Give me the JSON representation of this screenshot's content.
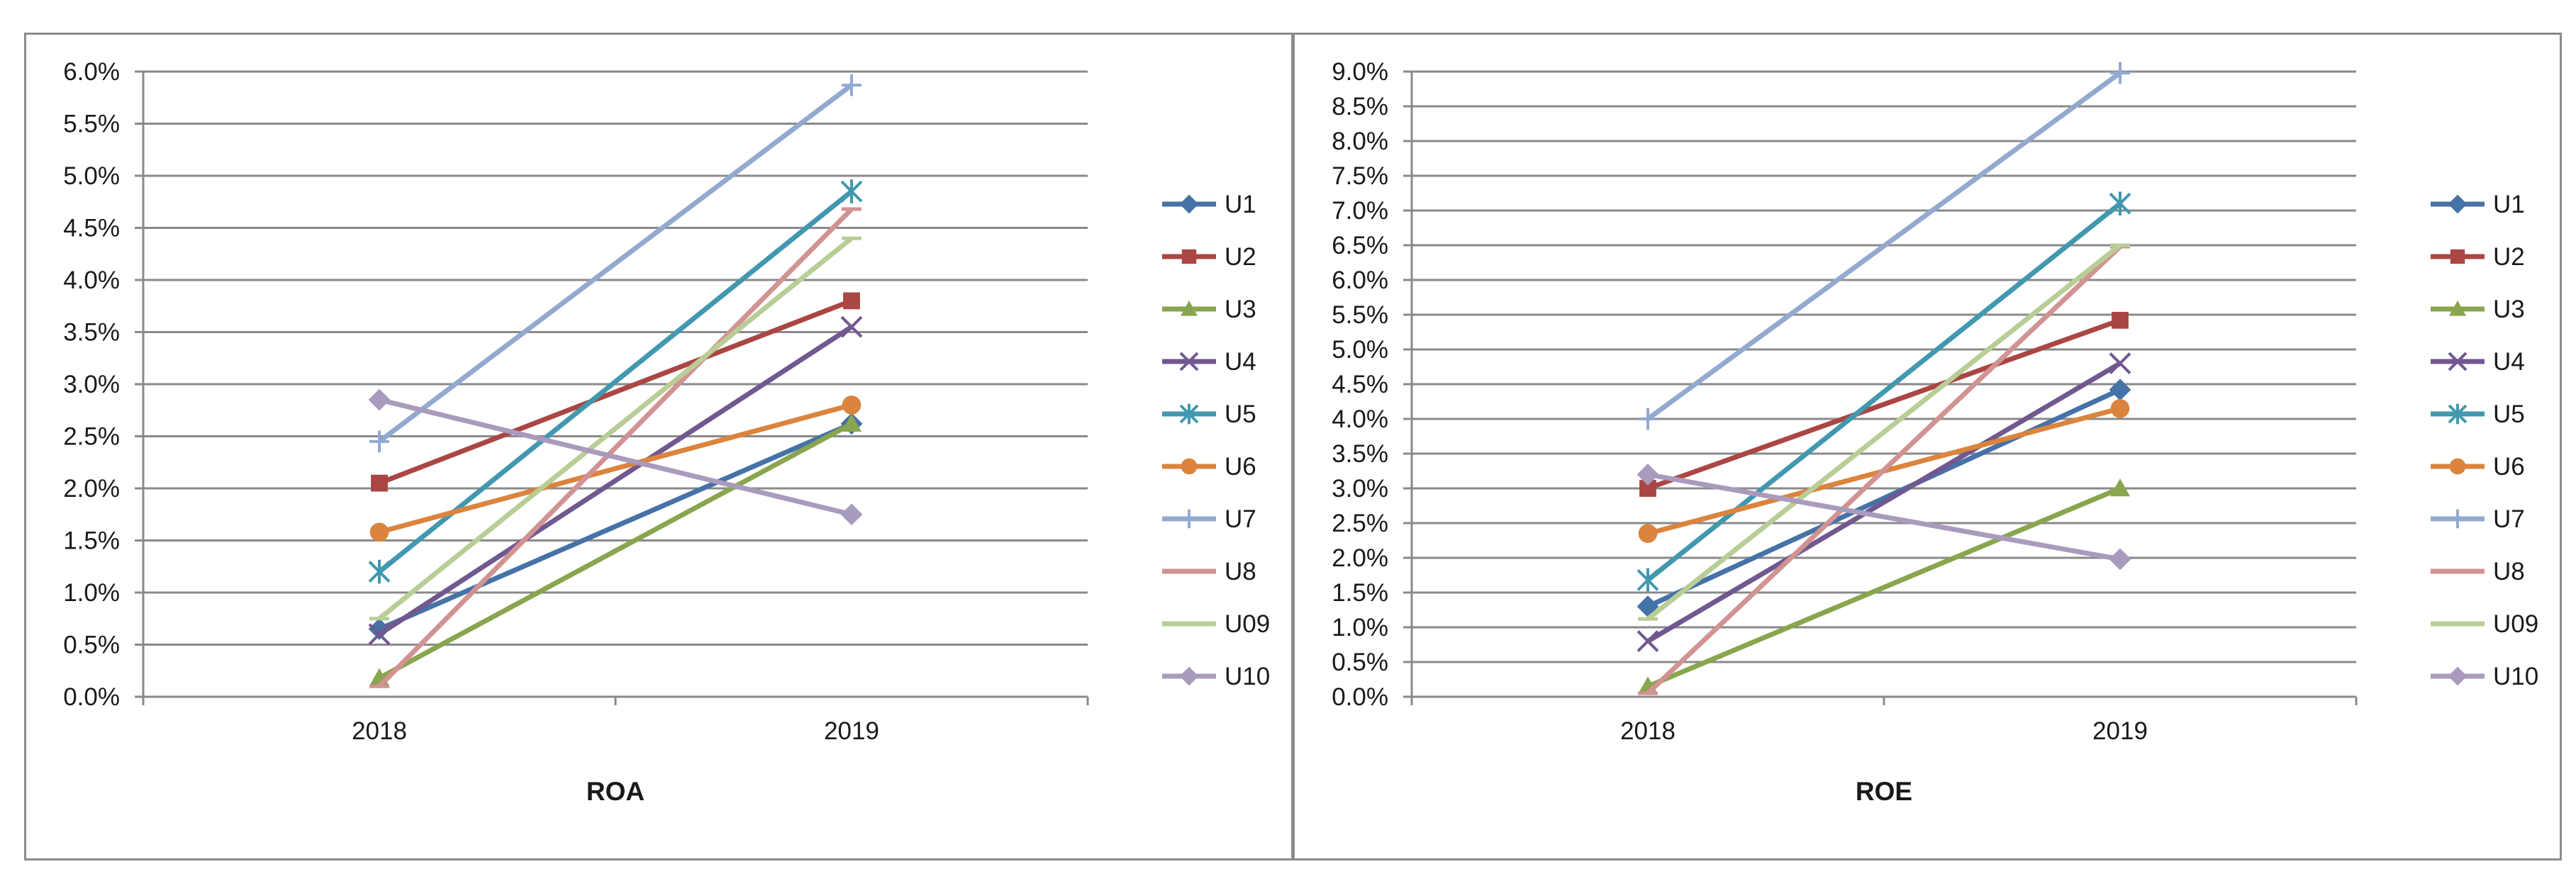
{
  "chart_data": [
    {
      "type": "line",
      "xlabel": "ROA",
      "ylabel": "",
      "categories": [
        "2018",
        "2019"
      ],
      "ylim": [
        0,
        6.0
      ],
      "ytick_step": 0.5,
      "ytick_labels": [
        "0.0%",
        "0.5%",
        "1.0%",
        "1.5%",
        "2.0%",
        "2.5%",
        "3.0%",
        "3.5%",
        "4.0%",
        "4.5%",
        "5.0%",
        "5.5%",
        "6.0%"
      ],
      "grid": true,
      "legend_position": "right",
      "series": [
        {
          "name": "U1",
          "values": [
            0.65,
            2.62
          ],
          "color": "#4572a7",
          "marker": "diamond"
        },
        {
          "name": "U2",
          "values": [
            2.05,
            3.8
          ],
          "color": "#aa4643",
          "marker": "square"
        },
        {
          "name": "U3",
          "values": [
            0.18,
            2.62
          ],
          "color": "#89a54e",
          "marker": "triangle"
        },
        {
          "name": "U4",
          "values": [
            0.6,
            3.55
          ],
          "color": "#71588f",
          "marker": "x"
        },
        {
          "name": "U5",
          "values": [
            1.2,
            4.85
          ],
          "color": "#4198af",
          "marker": "star"
        },
        {
          "name": "U6",
          "values": [
            1.58,
            2.8
          ],
          "color": "#db843d",
          "marker": "circle"
        },
        {
          "name": "U7",
          "values": [
            2.45,
            5.87
          ],
          "color": "#93a9cf",
          "marker": "plus"
        },
        {
          "name": "U8",
          "values": [
            0.1,
            4.68
          ],
          "color": "#d19392",
          "marker": "dash"
        },
        {
          "name": "U09",
          "values": [
            0.75,
            4.4
          ],
          "color": "#b9cd96",
          "marker": "dash"
        },
        {
          "name": "U10",
          "values": [
            2.85,
            1.75
          ],
          "color": "#a99bbd",
          "marker": "diamond"
        }
      ]
    },
    {
      "type": "line",
      "xlabel": "ROE",
      "ylabel": "",
      "categories": [
        "2018",
        "2019"
      ],
      "ylim": [
        0,
        9.0
      ],
      "ytick_step": 0.5,
      "ytick_labels": [
        "0.0%",
        "0.5%",
        "1.0%",
        "1.5%",
        "2.0%",
        "2.5%",
        "3.0%",
        "3.5%",
        "4.0%",
        "4.5%",
        "5.0%",
        "5.5%",
        "6.0%",
        "6.5%",
        "7.0%",
        "7.5%",
        "8.0%",
        "8.5%",
        "9.0%"
      ],
      "grid": true,
      "legend_position": "right",
      "series": [
        {
          "name": "U1",
          "values": [
            1.3,
            4.42
          ],
          "color": "#4572a7",
          "marker": "diamond"
        },
        {
          "name": "U2",
          "values": [
            3.0,
            5.42
          ],
          "color": "#aa4643",
          "marker": "square"
        },
        {
          "name": "U3",
          "values": [
            0.15,
            3.0
          ],
          "color": "#89a54e",
          "marker": "triangle"
        },
        {
          "name": "U4",
          "values": [
            0.8,
            4.8
          ],
          "color": "#71588f",
          "marker": "x"
        },
        {
          "name": "U5",
          "values": [
            1.68,
            7.1
          ],
          "color": "#4198af",
          "marker": "star"
        },
        {
          "name": "U6",
          "values": [
            2.35,
            4.15
          ],
          "color": "#db843d",
          "marker": "circle"
        },
        {
          "name": "U7",
          "values": [
            4.0,
            8.98
          ],
          "color": "#93a9cf",
          "marker": "plus"
        },
        {
          "name": "U8",
          "values": [
            0.05,
            6.48
          ],
          "color": "#d19392",
          "marker": "dash"
        },
        {
          "name": "U09",
          "values": [
            1.12,
            6.5
          ],
          "color": "#b9cd96",
          "marker": "dash"
        },
        {
          "name": "U10",
          "values": [
            3.2,
            1.98
          ],
          "color": "#a99bbd",
          "marker": "diamond"
        }
      ]
    }
  ]
}
